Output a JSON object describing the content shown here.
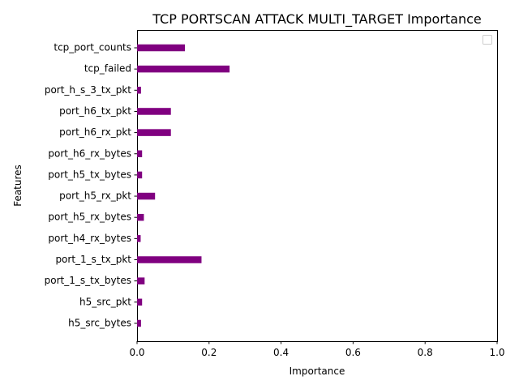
{
  "chart_data": {
    "type": "bar",
    "orientation": "horizontal",
    "title": "TCP PORTSCAN ATTACK MULTI_TARGET Importance",
    "xlabel": "Importance",
    "ylabel": "Features",
    "xlim": [
      0,
      1
    ],
    "xticks": [
      "0.0",
      "0.2",
      "0.4",
      "0.6",
      "0.8",
      "1.0"
    ],
    "categories": [
      "tcp_port_counts",
      "tcp_failed",
      "port_h_s_3_tx_pkt",
      "port_h6_tx_pkt",
      "port_h6_rx_pkt",
      "port_h6_rx_bytes",
      "port_h5_tx_bytes",
      "port_h5_rx_pkt",
      "port_h5_rx_bytes",
      "port_h4_rx_bytes",
      "port_1_s_tx_pkt",
      "port_1_s_tx_bytes",
      "h5_src_pkt",
      "h5_src_bytes"
    ],
    "values": [
      0.133,
      0.257,
      0.011,
      0.094,
      0.094,
      0.014,
      0.014,
      0.05,
      0.019,
      0.01,
      0.179,
      0.021,
      0.014,
      0.011
    ],
    "bar_color": "#800080",
    "legend": "top-right",
    "grid": false
  }
}
